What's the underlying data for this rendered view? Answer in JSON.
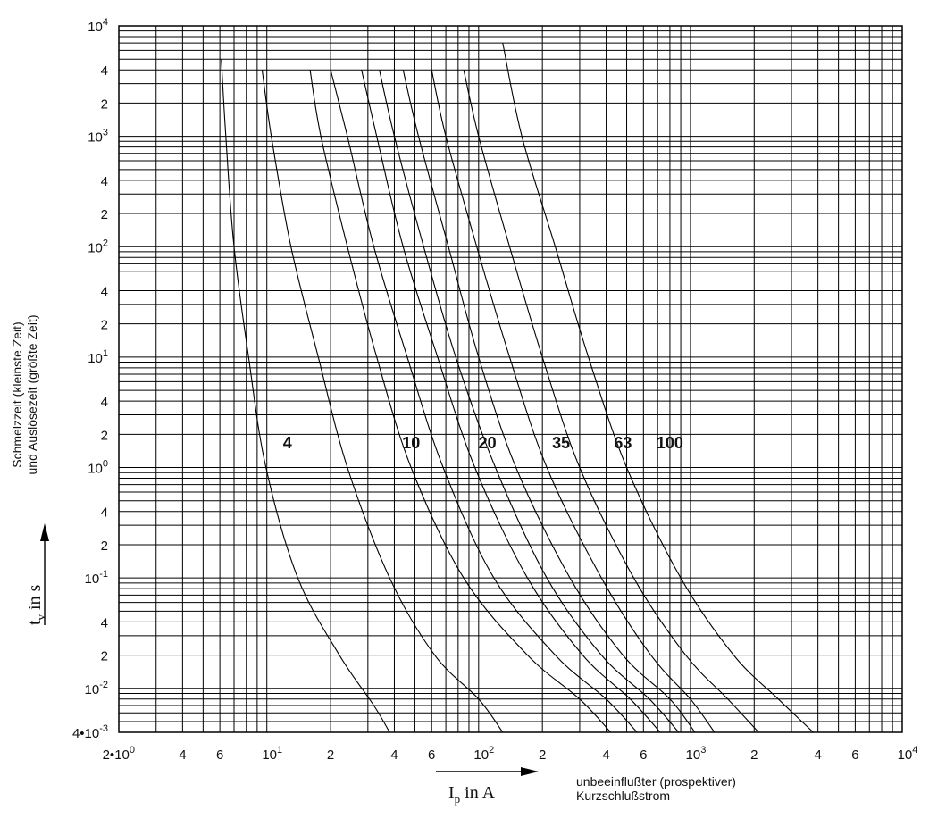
{
  "chart_data": {
    "type": "line",
    "scale": "log-log",
    "grid": true,
    "xlim": [
      2,
      10000
    ],
    "ylim": [
      0.004,
      10000
    ],
    "x_ticks": [
      {
        "value": 2,
        "base": "2•10",
        "exp": "0"
      },
      {
        "value": 4,
        "base": "4",
        "exp": ""
      },
      {
        "value": 6,
        "base": "6",
        "exp": ""
      },
      {
        "value": 10,
        "base": "10",
        "exp": "1"
      },
      {
        "value": 20,
        "base": "2",
        "exp": ""
      },
      {
        "value": 40,
        "base": "4",
        "exp": ""
      },
      {
        "value": 60,
        "base": "6",
        "exp": ""
      },
      {
        "value": 100,
        "base": "10",
        "exp": "2"
      },
      {
        "value": 200,
        "base": "2",
        "exp": ""
      },
      {
        "value": 400,
        "base": "4",
        "exp": ""
      },
      {
        "value": 600,
        "base": "6",
        "exp": ""
      },
      {
        "value": 1000,
        "base": "10",
        "exp": "3"
      },
      {
        "value": 2000,
        "base": "2",
        "exp": ""
      },
      {
        "value": 4000,
        "base": "4",
        "exp": ""
      },
      {
        "value": 6000,
        "base": "6",
        "exp": ""
      },
      {
        "value": 10000,
        "base": "10",
        "exp": "4"
      }
    ],
    "y_ticks": [
      {
        "value": 10000,
        "base": "10",
        "exp": "4"
      },
      {
        "value": 4000,
        "base": "4",
        "exp": ""
      },
      {
        "value": 2000,
        "base": "2",
        "exp": ""
      },
      {
        "value": 1000,
        "base": "10",
        "exp": "3"
      },
      {
        "value": 400,
        "base": "4",
        "exp": ""
      },
      {
        "value": 200,
        "base": "2",
        "exp": ""
      },
      {
        "value": 100,
        "base": "10",
        "exp": "2"
      },
      {
        "value": 40,
        "base": "4",
        "exp": ""
      },
      {
        "value": 20,
        "base": "2",
        "exp": ""
      },
      {
        "value": 10,
        "base": "10",
        "exp": "1"
      },
      {
        "value": 4,
        "base": "4",
        "exp": ""
      },
      {
        "value": 2,
        "base": "2",
        "exp": ""
      },
      {
        "value": 1,
        "base": "10",
        "exp": "0"
      },
      {
        "value": 0.4,
        "base": "4",
        "exp": ""
      },
      {
        "value": 0.2,
        "base": "2",
        "exp": ""
      },
      {
        "value": 0.1,
        "base": "10",
        "exp": "-1"
      },
      {
        "value": 0.04,
        "base": "4",
        "exp": ""
      },
      {
        "value": 0.02,
        "base": "2",
        "exp": ""
      },
      {
        "value": 0.01,
        "base": "10",
        "exp": "-2"
      },
      {
        "value": 0.004,
        "base": "4•10",
        "exp": "-3"
      }
    ],
    "y_caption": [
      "Schmelzzeit (kleinste Zeit)",
      "und Auslösezeit (größte Zeit)"
    ],
    "y_symbol": {
      "main": "t",
      "sub": "v",
      "unit": " in s"
    },
    "x_symbol": {
      "main": "I",
      "sub": "p",
      "unit": " in A"
    },
    "x_caption": [
      "unbeeinflußter (prospektiver)",
      "Kurzschlußstrom"
    ],
    "curve_labels": [
      {
        "text": "4",
        "x": 12.5,
        "y": 1.7
      },
      {
        "text": "10",
        "x": 48,
        "y": 1.7
      },
      {
        "text": "20",
        "x": 110,
        "y": 1.7
      },
      {
        "text": "35",
        "x": 245,
        "y": 1.7
      },
      {
        "text": "63",
        "x": 480,
        "y": 1.7
      },
      {
        "text": "100",
        "x": 800,
        "y": 1.7
      }
    ],
    "series": [
      {
        "points": [
          [
            6.1,
            5000
          ],
          [
            6.4,
            1000
          ],
          [
            7.0,
            100
          ],
          [
            8.2,
            10
          ],
          [
            9.9,
            1
          ],
          [
            14,
            0.1
          ],
          [
            22,
            0.02
          ],
          [
            32,
            0.007
          ],
          [
            38,
            0.004
          ]
        ]
      },
      {
        "points": [
          [
            9.5,
            4000
          ],
          [
            10.5,
            1000
          ],
          [
            13,
            100
          ],
          [
            17.5,
            10
          ],
          [
            24,
            1
          ],
          [
            38,
            0.1
          ],
          [
            62,
            0.02
          ],
          [
            100,
            0.008
          ],
          [
            130,
            0.004
          ]
        ]
      },
      {
        "points": [
          [
            16,
            4000
          ],
          [
            18,
            1000
          ],
          [
            24,
            100
          ],
          [
            33,
            10
          ],
          [
            48,
            1
          ],
          [
            85,
            0.1
          ],
          [
            170,
            0.02
          ],
          [
            300,
            0.008
          ],
          [
            420,
            0.004
          ]
        ]
      },
      {
        "points": [
          [
            20,
            4000
          ],
          [
            24,
            1000
          ],
          [
            32,
            100
          ],
          [
            46,
            10
          ],
          [
            68,
            1
          ],
          [
            118,
            0.1
          ],
          [
            230,
            0.02
          ],
          [
            400,
            0.008
          ],
          [
            560,
            0.004
          ]
        ]
      },
      {
        "points": [
          [
            28,
            4000
          ],
          [
            33,
            1000
          ],
          [
            44,
            100
          ],
          [
            64,
            10
          ],
          [
            96,
            1
          ],
          [
            170,
            0.1
          ],
          [
            310,
            0.02
          ],
          [
            520,
            0.008
          ],
          [
            720,
            0.004
          ]
        ]
      },
      {
        "points": [
          [
            34,
            4000
          ],
          [
            40,
            1000
          ],
          [
            55,
            100
          ],
          [
            78,
            10
          ],
          [
            120,
            1
          ],
          [
            210,
            0.1
          ],
          [
            380,
            0.02
          ],
          [
            640,
            0.008
          ],
          [
            880,
            0.004
          ]
        ]
      },
      {
        "points": [
          [
            44,
            4000
          ],
          [
            52,
            1000
          ],
          [
            72,
            100
          ],
          [
            100,
            10
          ],
          [
            150,
            1
          ],
          [
            270,
            0.1
          ],
          [
            480,
            0.02
          ],
          [
            800,
            0.008
          ],
          [
            1050,
            0.004
          ]
        ]
      },
      {
        "points": [
          [
            60,
            4000
          ],
          [
            70,
            1000
          ],
          [
            98,
            100
          ],
          [
            140,
            10
          ],
          [
            210,
            1
          ],
          [
            380,
            0.1
          ],
          [
            650,
            0.02
          ],
          [
            1000,
            0.008
          ],
          [
            1300,
            0.004
          ]
        ]
      },
      {
        "points": [
          [
            85,
            4000
          ],
          [
            100,
            1000
          ],
          [
            140,
            100
          ],
          [
            200,
            10
          ],
          [
            300,
            1
          ],
          [
            540,
            0.1
          ],
          [
            950,
            0.02
          ],
          [
            1500,
            0.008
          ],
          [
            2100,
            0.004
          ]
        ]
      },
      {
        "points": [
          [
            130,
            7000
          ],
          [
            160,
            1000
          ],
          [
            230,
            100
          ],
          [
            330,
            10
          ],
          [
            500,
            1
          ],
          [
            900,
            0.1
          ],
          [
            1600,
            0.02
          ],
          [
            2600,
            0.008
          ],
          [
            3800,
            0.004
          ]
        ]
      }
    ]
  }
}
